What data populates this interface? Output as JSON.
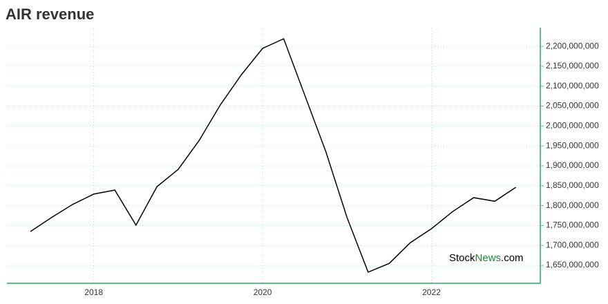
{
  "chart_data": {
    "type": "line",
    "title": "AIR revenue",
    "watermark": {
      "stock": "Stock",
      "news": "News",
      "com": ".com"
    },
    "categories": [
      null,
      null,
      null,
      "2018",
      null,
      null,
      null,
      null,
      null,
      null,
      null,
      "2020",
      null,
      null,
      null,
      null,
      null,
      null,
      null,
      "2022",
      null,
      null,
      null,
      null
    ],
    "series": [
      {
        "name": "Revenue",
        "color": "#000000",
        "values": [
          1735000000,
          1770000000,
          1803000000,
          1829000000,
          1839000000,
          1751000000,
          1848000000,
          1891000000,
          1964000000,
          2053000000,
          2129000000,
          2195000000,
          2219000000,
          2077000000,
          1935000000,
          1770000000,
          1633000000,
          1655000000,
          1707000000,
          1742000000,
          1785000000,
          1820000000,
          1811000000,
          1846000000
        ]
      }
    ],
    "ylim": [
      1605000000,
      2247000000
    ],
    "yticks": [
      {
        "value": 1650000000,
        "label": "1,650,000,000"
      },
      {
        "value": 1700000000,
        "label": "1,700,000,000"
      },
      {
        "value": 1750000000,
        "label": "1,750,000,000"
      },
      {
        "value": 1800000000,
        "label": "1,800,000,000"
      },
      {
        "value": 1850000000,
        "label": "1,850,000,000"
      },
      {
        "value": 1900000000,
        "label": "1,900,000,000"
      },
      {
        "value": 1950000000,
        "label": "1,950,000,000"
      },
      {
        "value": 2000000000,
        "label": "2,000,000,000"
      },
      {
        "value": 2050000000,
        "label": "2,050,000,000"
      },
      {
        "value": 2100000000,
        "label": "2,100,000,000"
      },
      {
        "value": 2150000000,
        "label": "2,150,000,000"
      },
      {
        "value": 2200000000,
        "label": "2,200,000,000"
      }
    ],
    "grid": true,
    "axis_color": "#5bbf86",
    "title_color": "#5bbf86",
    "brand_color": "#1a8a2e"
  }
}
